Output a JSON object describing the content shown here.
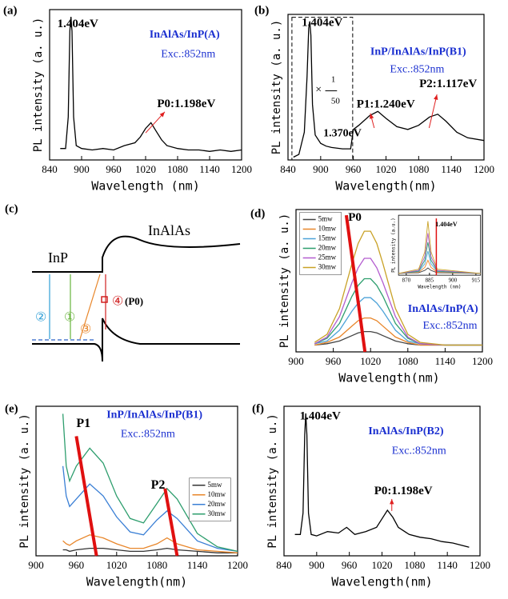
{
  "chart_data": [
    {
      "type": "line",
      "panel_label": "(a)",
      "xlabel": "Wavelength (nm)",
      "ylabel": "PL intensity (a. u.)",
      "xlim": [
        840,
        1200
      ],
      "xticks": [
        840,
        900,
        960,
        1020,
        1080,
        1140,
        1200
      ],
      "ylim": [
        0,
        1.05
      ],
      "annotations": [
        "1.404eV",
        "InAlAs/InP(A)",
        "Exc.:852nm",
        "P0:1.198eV"
      ],
      "x": [
        860,
        870,
        875,
        878,
        880,
        882,
        885,
        890,
        900,
        920,
        940,
        960,
        980,
        1000,
        1010,
        1020,
        1030,
        1040,
        1050,
        1060,
        1080,
        1100,
        1120,
        1140,
        1160,
        1180,
        1200
      ],
      "series": [
        {
          "color": "#000000",
          "values": [
            0.08,
            0.08,
            0.3,
            0.9,
            1.0,
            0.9,
            0.3,
            0.1,
            0.08,
            0.07,
            0.08,
            0.07,
            0.1,
            0.12,
            0.16,
            0.22,
            0.26,
            0.2,
            0.14,
            0.1,
            0.08,
            0.07,
            0.07,
            0.06,
            0.07,
            0.06,
            0.07
          ]
        }
      ]
    },
    {
      "type": "line",
      "panel_label": "(b)",
      "xlabel": "Wavelength(nm)",
      "ylabel": "PL intensity (a. u.)",
      "xlim": [
        840,
        1200
      ],
      "xticks": [
        840,
        900,
        960,
        1020,
        1080,
        1140,
        1200
      ],
      "ylim": [
        0,
        1.05
      ],
      "annotations": [
        "1.404eV",
        "InP/InAlAs/InP(B1)",
        "Exc.:852nm",
        "×",
        "1",
        "50",
        "P1:1.240eV",
        "P2:1.117eV",
        "1.370eV"
      ],
      "x": [
        850,
        860,
        870,
        875,
        878,
        880,
        882,
        885,
        890,
        900,
        910,
        920,
        940,
        955,
        960,
        970,
        990,
        1005,
        1020,
        1040,
        1060,
        1080,
        1100,
        1115,
        1130,
        1150,
        1170,
        1200
      ],
      "series": [
        {
          "color": "#000000",
          "values": [
            0.02,
            0.04,
            0.2,
            0.6,
            0.95,
            1.0,
            0.9,
            0.4,
            0.18,
            0.12,
            0.1,
            0.09,
            0.08,
            0.08,
            0.22,
            0.25,
            0.32,
            0.35,
            0.3,
            0.24,
            0.22,
            0.25,
            0.31,
            0.33,
            0.28,
            0.2,
            0.16,
            0.14
          ]
        }
      ]
    },
    {
      "type": "line",
      "panel_label": "(d)",
      "xlabel": "Wavelength(nm)",
      "ylabel": "PL intensity (a. u.)",
      "xlim": [
        900,
        1200
      ],
      "xticks": [
        900,
        960,
        1020,
        1080,
        1140,
        1200
      ],
      "ylim": [
        0,
        1.05
      ],
      "annotations": [
        "P0",
        "InAlAs/InP(A)",
        "Exc.:852nm"
      ],
      "x": [
        930,
        950,
        970,
        990,
        1000,
        1010,
        1020,
        1030,
        1040,
        1060,
        1080,
        1100,
        1140,
        1200
      ],
      "series": [
        {
          "name": "5mw",
          "color": "#444444",
          "values": [
            0.05,
            0.06,
            0.08,
            0.12,
            0.14,
            0.15,
            0.15,
            0.14,
            0.12,
            0.08,
            0.06,
            0.05,
            0.05,
            0.05
          ]
        },
        {
          "name": "10mw",
          "color": "#e8862a",
          "values": [
            0.05,
            0.07,
            0.11,
            0.19,
            0.23,
            0.25,
            0.25,
            0.23,
            0.19,
            0.11,
            0.07,
            0.05,
            0.05,
            0.05
          ]
        },
        {
          "name": "15mw",
          "color": "#4ea3d8",
          "values": [
            0.06,
            0.08,
            0.16,
            0.3,
            0.36,
            0.4,
            0.4,
            0.36,
            0.3,
            0.16,
            0.08,
            0.06,
            0.05,
            0.05
          ]
        },
        {
          "name": "20mw",
          "color": "#2e9e6e",
          "values": [
            0.06,
            0.1,
            0.21,
            0.41,
            0.49,
            0.54,
            0.54,
            0.49,
            0.41,
            0.21,
            0.1,
            0.06,
            0.05,
            0.05
          ]
        },
        {
          "name": "25mw",
          "color": "#b35ccf",
          "values": [
            0.06,
            0.11,
            0.26,
            0.51,
            0.62,
            0.69,
            0.69,
            0.62,
            0.51,
            0.26,
            0.11,
            0.06,
            0.05,
            0.05
          ]
        },
        {
          "name": "30mw",
          "color": "#c9a227",
          "values": [
            0.07,
            0.13,
            0.32,
            0.65,
            0.8,
            0.89,
            0.89,
            0.8,
            0.65,
            0.32,
            0.13,
            0.07,
            0.05,
            0.05
          ]
        }
      ],
      "legend": "upper left",
      "inset": {
        "type": "line",
        "xlabel": "Wavelength (nm)",
        "ylabel": "PL intensity (a.u.)",
        "xlim": [
          865,
          918
        ],
        "xticks": [
          870,
          885,
          900,
          915
        ],
        "ylim": [
          0,
          1.0
        ],
        "annotations": [
          "1.404eV"
        ],
        "x": [
          865,
          878,
          882,
          884,
          886,
          890,
          918
        ],
        "series": [
          {
            "color": "#444444",
            "values": [
              0.03,
              0.04,
              0.08,
              0.12,
              0.08,
              0.04,
              0.03
            ]
          },
          {
            "color": "#e8862a",
            "values": [
              0.03,
              0.05,
              0.13,
              0.25,
              0.13,
              0.05,
              0.03
            ]
          },
          {
            "color": "#4ea3d8",
            "values": [
              0.03,
              0.06,
              0.19,
              0.4,
              0.19,
              0.06,
              0.03
            ]
          },
          {
            "color": "#2e9e6e",
            "values": [
              0.03,
              0.07,
              0.25,
              0.55,
              0.25,
              0.07,
              0.03
            ]
          },
          {
            "color": "#b35ccf",
            "values": [
              0.03,
              0.08,
              0.31,
              0.7,
              0.31,
              0.08,
              0.03
            ]
          },
          {
            "color": "#c9a227",
            "values": [
              0.03,
              0.1,
              0.39,
              0.9,
              0.39,
              0.1,
              0.03
            ]
          }
        ]
      }
    },
    {
      "type": "line",
      "panel_label": "(e)",
      "xlabel": "Wavelength(nm)",
      "ylabel": "PL intensity (a. u.)",
      "xlim": [
        900,
        1200
      ],
      "xticks": [
        900,
        960,
        1020,
        1080,
        1140,
        1200
      ],
      "ylim": [
        0,
        1.0
      ],
      "annotations": [
        "P1",
        "P2",
        "InP/InAlAs/InP(B1)",
        "Exc.:852nm"
      ],
      "x": [
        940,
        945,
        950,
        960,
        980,
        1000,
        1020,
        1040,
        1060,
        1080,
        1095,
        1110,
        1140,
        1170,
        1200
      ],
      "series": [
        {
          "name": "5mw",
          "color": "#333333",
          "values": [
            0.04,
            0.04,
            0.03,
            0.04,
            0.05,
            0.05,
            0.04,
            0.03,
            0.03,
            0.04,
            0.05,
            0.04,
            0.03,
            0.02,
            0.02
          ]
        },
        {
          "name": "10mw",
          "color": "#e8862a",
          "values": [
            0.1,
            0.08,
            0.07,
            0.1,
            0.14,
            0.12,
            0.08,
            0.05,
            0.05,
            0.08,
            0.12,
            0.08,
            0.04,
            0.03,
            0.02
          ]
        },
        {
          "name": "20mw",
          "color": "#3a7fd5",
          "values": [
            0.6,
            0.4,
            0.33,
            0.38,
            0.48,
            0.4,
            0.26,
            0.16,
            0.14,
            0.24,
            0.3,
            0.25,
            0.1,
            0.05,
            0.03
          ]
        },
        {
          "name": "30mw",
          "color": "#2e9e6e",
          "values": [
            0.95,
            0.6,
            0.5,
            0.6,
            0.72,
            0.62,
            0.4,
            0.25,
            0.22,
            0.35,
            0.45,
            0.38,
            0.15,
            0.06,
            0.03
          ]
        }
      ],
      "legend": "center right"
    },
    {
      "type": "line",
      "panel_label": "(f)",
      "xlabel": "Wavelength(nm)",
      "ylabel": "PL intensity (a. u.)",
      "xlim": [
        840,
        1200
      ],
      "xticks": [
        840,
        900,
        960,
        1020,
        1080,
        1140,
        1200
      ],
      "ylim": [
        0,
        1.05
      ],
      "annotations": [
        "1.404eV",
        "InAlAs/InP(B2)",
        "Exc.:852nm",
        "P0:1.198eV"
      ],
      "x": [
        860,
        870,
        875,
        878,
        880,
        882,
        885,
        890,
        900,
        920,
        940,
        955,
        970,
        990,
        1010,
        1020,
        1030,
        1040,
        1050,
        1070,
        1090,
        1110,
        1130,
        1150,
        1170,
        1180
      ],
      "series": [
        {
          "color": "#000000",
          "values": [
            0.15,
            0.15,
            0.3,
            0.85,
            1.0,
            0.85,
            0.3,
            0.15,
            0.14,
            0.17,
            0.16,
            0.2,
            0.15,
            0.17,
            0.2,
            0.26,
            0.32,
            0.27,
            0.2,
            0.15,
            0.13,
            0.12,
            0.1,
            0.09,
            0.07,
            0.06
          ]
        }
      ]
    }
  ],
  "diagram": {
    "panel_label": "(c)",
    "labels": [
      "InP",
      "InAlAs",
      "②",
      "①",
      "③",
      "④",
      "(P0)"
    ]
  }
}
